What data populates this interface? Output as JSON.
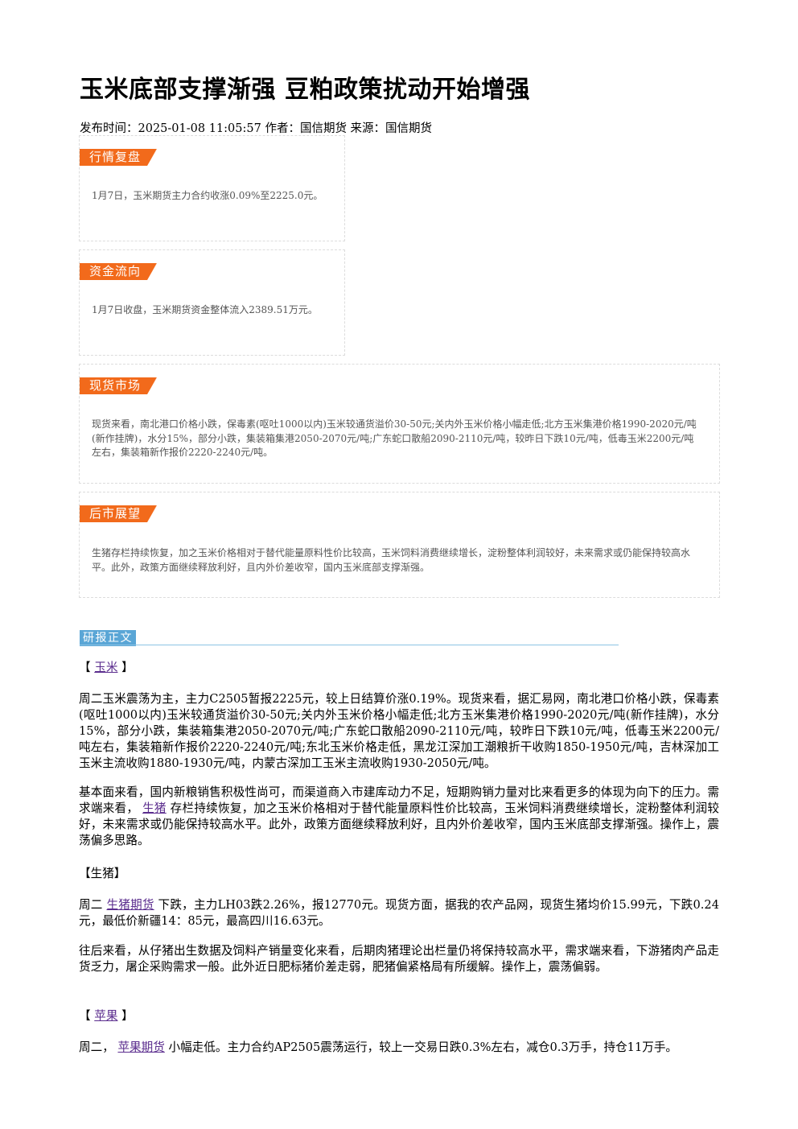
{
  "article": {
    "title": "玉米底部支撑渐强 豆粕政策扰动开始增强",
    "meta": "发布时间：2025-01-08 11:05:57 作者：国信期货 来源：国信期货"
  },
  "cards": {
    "review": {
      "tag": "行情复盘",
      "text": "1月7日，玉米期货主力合约收涨0.09%至2225.0元。"
    },
    "flow": {
      "tag": "资金流向",
      "text": "1月7日收盘，玉米期货资金整体流入2389.51万元。"
    },
    "spot": {
      "tag": "现货市场",
      "text": "现货来看，南北港口价格小跌，保毒素(呕吐1000以内)玉米较通货溢价30-50元;关内外玉米价格小幅走低;北方玉米集港价格1990-2020元/吨(新作挂牌)，水分15%，部分小跌，集装箱集港2050-2070元/吨;广东蛇口散船2090-2110元/吨，较昨日下跌10元/吨，低毒玉米2200元/吨左右，集装箱新作报价2220-2240元/吨。"
    },
    "outlook": {
      "tag": "后市展望",
      "text": "生猪存栏持续恢复，加之玉米价格相对于替代能量原料性价比较高，玉米饲料消费继续增长，淀粉整体利润较好，未来需求或仍能保持较高水平。此外，政策方面继续释放利好，且内外价差收窄，国内玉米底部支撑渐强。"
    }
  },
  "body_section": {
    "label": "研报正文"
  },
  "corn": {
    "bracket_open": "【",
    "link": "玉米",
    "bracket_close": "】",
    "p1": "周二玉米震荡为主，主力C2505暂报2225元，较上日结算价涨0.19%。现货来看，据汇易网，南北港口价格小跌，保毒素(呕吐1000以内)玉米较通货溢价30-50元;关内外玉米价格小幅走低;北方玉米集港价格1990-2020元/吨(新作挂牌)，水分15%，部分小跌，集装箱集港2050-2070元/吨;广东蛇口散船2090-2110元/吨，较昨日下跌10元/吨，低毒玉米2200元/吨左右，集装箱新作报价2220-2240元/吨;东北玉米价格走低，黑龙江深加工潮粮折干收购1850-1950元/吨，吉林深加工玉米主流收购1880-1930元/吨，内蒙古深加工玉米主流收购1930-2050元/吨。",
    "p2_before": "基本面来看，国内新粮销售积极性尚可，而渠道商入市建库动力不足，短期购销力量对比来看更多的体现为向下的压力。需求端来看，",
    "p2_link": "生猪",
    "p2_after": "存栏持续恢复，加之玉米价格相对于替代能量原料性价比较高，玉米饲料消费继续增长，淀粉整体利润较好，未来需求或仍能保持较高水平。此外，政策方面继续释放利好，且内外价差收窄，国内玉米底部支撑渐强。操作上，震荡偏多思路。"
  },
  "hog": {
    "heading": "【生猪】",
    "p1_before": "周二",
    "p1_link": "生猪期货",
    "p1_after": "下跌，主力LH03跌2.26%，报12770元。现货方面，据我的农产品网，现货生猪均价15.99元，下跌0.24元，最低价新疆14：85元，最高四川16.63元。",
    "p2": "往后来看，从仔猪出生数据及饲料产销量变化来看，后期肉猪理论出栏量仍将保持较高水平，需求端来看，下游猪肉产品走货乏力，屠企采购需求一般。此外近日肥标猪价差走弱，肥猪偏紧格局有所缓解。操作上，震荡偏弱。"
  },
  "apple": {
    "bracket_open": "【",
    "link": "苹果",
    "bracket_close": "】",
    "p1_before": "周二，",
    "p1_link": "苹果期货",
    "p1_after": "小幅走低。主力合约AP2505震荡运行，较上一交易日跌0.3%左右，减仓0.3万手，持仓11万手。"
  }
}
